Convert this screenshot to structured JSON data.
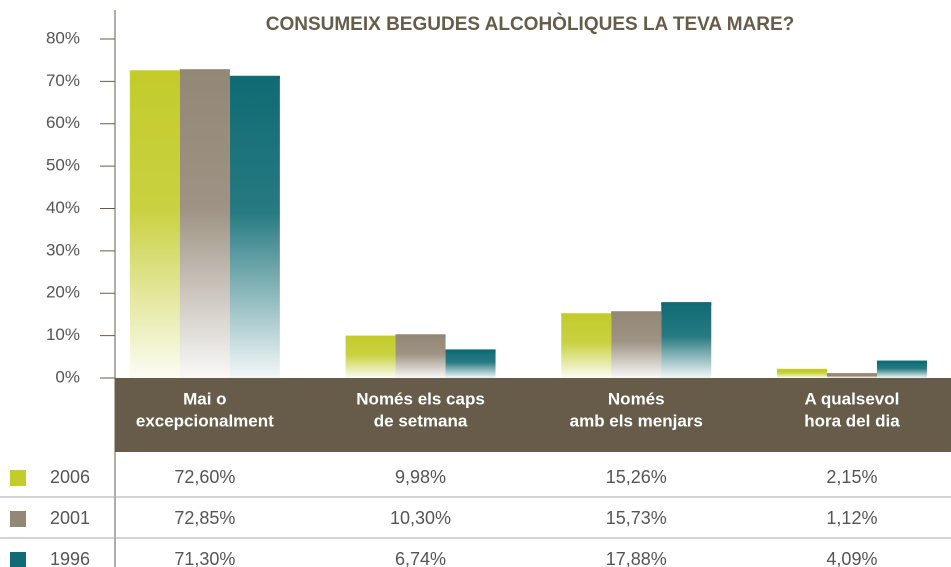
{
  "chart_data": {
    "type": "bar",
    "title": "CONSUMEIX BEGUDES ALCOHÒLIQUES LA TEVA MARE?",
    "categories": [
      [
        "Mai o",
        "excepcionalment"
      ],
      [
        "Només els caps",
        "de setmana"
      ],
      [
        "Només",
        "amb els menjars"
      ],
      [
        "A qualsevol",
        "hora del dia"
      ]
    ],
    "series": [
      {
        "name": "2006",
        "color": "#c3cc2b",
        "values": [
          72.6,
          9.98,
          15.26,
          2.15
        ],
        "value_labels": [
          "72,60%",
          "9,98%",
          "15,26%",
          "2,15%"
        ]
      },
      {
        "name": "2001",
        "color": "#938776",
        "values": [
          72.85,
          10.3,
          15.73,
          1.12
        ],
        "value_labels": [
          "72,85%",
          "10,30%",
          "15,73%",
          "1,12%"
        ]
      },
      {
        "name": "1996",
        "color": "#0f6b74",
        "values": [
          71.3,
          6.74,
          17.88,
          4.09
        ],
        "value_labels": [
          "71,30%",
          "6,74%",
          "17,88%",
          "4,09%"
        ]
      }
    ],
    "ylim": [
      0,
      80
    ],
    "yticks": [
      {
        "value": 0,
        "label": "0%"
      },
      {
        "value": 10,
        "label": "10%"
      },
      {
        "value": 20,
        "label": "20%"
      },
      {
        "value": 30,
        "label": "30%"
      },
      {
        "value": 40,
        "label": "40%"
      },
      {
        "value": 50,
        "label": "50%"
      },
      {
        "value": 60,
        "label": "60%"
      },
      {
        "value": 70,
        "label": "70%"
      },
      {
        "value": 80,
        "label": "80%"
      }
    ]
  }
}
